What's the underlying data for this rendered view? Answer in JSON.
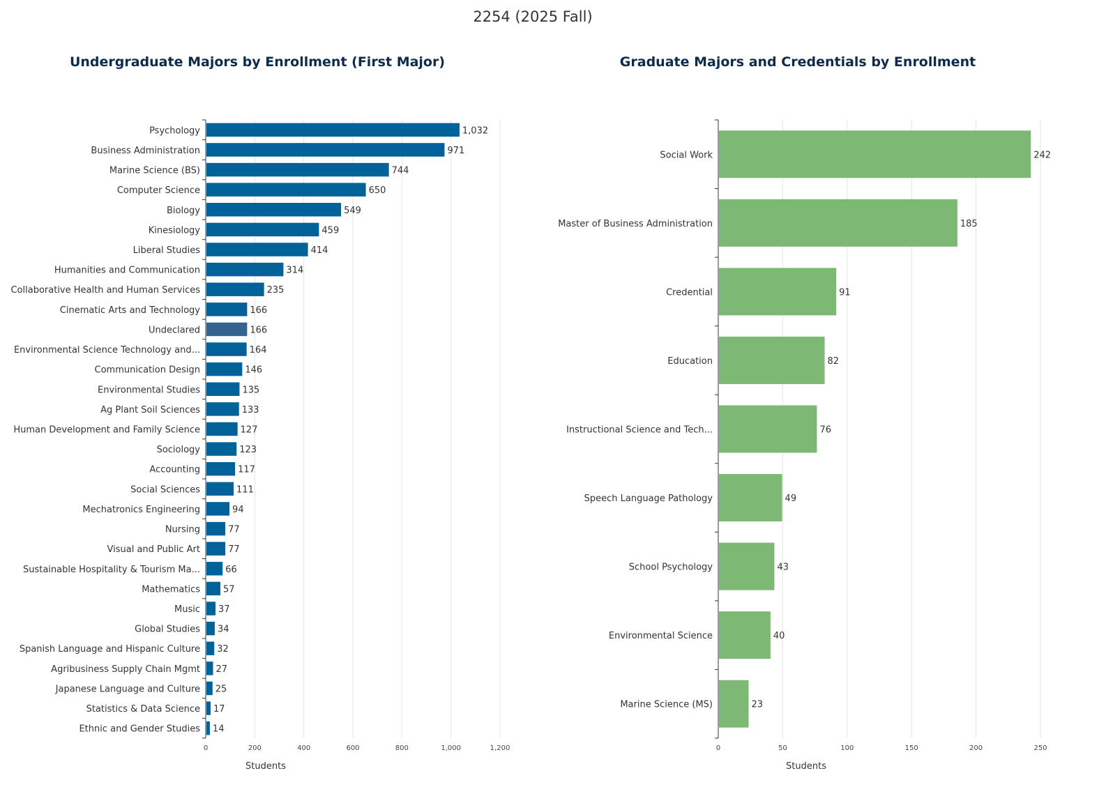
{
  "page_title": "2254 (2025 Fall)",
  "chart_data": [
    {
      "type": "bar",
      "orientation": "horizontal",
      "title": "Undergraduate Majors by Enrollment (First Major)",
      "xlabel": "Students",
      "xlim": [
        0,
        1200
      ],
      "xticks": [
        "0",
        "200",
        "400",
        "600",
        "800",
        "1,000",
        "1,200"
      ],
      "xtick_values": [
        0,
        200,
        400,
        600,
        800,
        1000,
        1200
      ],
      "grid": true,
      "color": "#006298",
      "highlight_color": "#35638f",
      "highlight_category": "Undeclared",
      "categories": [
        "Psychology",
        "Business Administration",
        "Marine Science (BS)",
        "Computer Science",
        "Biology",
        "Kinesiology",
        "Liberal Studies",
        "Humanities and Communication",
        "Collaborative Health and Human Services",
        "Cinematic Arts and Technology",
        "Undeclared",
        "Environmental Science Technology and...",
        "Communication Design",
        "Environmental Studies",
        "Ag Plant Soil Sciences",
        "Human Development and Family Science",
        "Sociology",
        "Accounting",
        "Social Sciences",
        "Mechatronics Engineering",
        "Nursing",
        "Visual and Public Art",
        "Sustainable Hospitality & Tourism Ma...",
        "Mathematics",
        "Music",
        "Global Studies",
        "Spanish Language and Hispanic Culture",
        "Agribusiness Supply Chain Mgmt",
        "Japanese Language and Culture",
        "Statistics & Data Science",
        "Ethnic and Gender Studies"
      ],
      "values": [
        1032,
        971,
        744,
        650,
        549,
        459,
        414,
        314,
        235,
        166,
        166,
        164,
        146,
        135,
        133,
        127,
        123,
        117,
        111,
        94,
        77,
        77,
        66,
        57,
        37,
        34,
        32,
        27,
        25,
        17,
        14
      ],
      "labels": [
        "1,032",
        "971",
        "744",
        "650",
        "549",
        "459",
        "414",
        "314",
        "235",
        "166",
        "166",
        "164",
        "146",
        "135",
        "133",
        "127",
        "123",
        "117",
        "111",
        "94",
        "77",
        "77",
        "66",
        "57",
        "37",
        "34",
        "32",
        "27",
        "25",
        "17",
        "14"
      ]
    },
    {
      "type": "bar",
      "orientation": "horizontal",
      "title": "Graduate Majors and Credentials by Enrollment",
      "xlabel": "Students",
      "xlim": [
        0,
        250
      ],
      "xticks": [
        "0",
        "50",
        "100",
        "150",
        "200",
        "250"
      ],
      "xtick_values": [
        0,
        50,
        100,
        150,
        200,
        250
      ],
      "grid": true,
      "color": "#7db874",
      "categories": [
        "Social Work",
        "Master of Business Administration",
        "Credential",
        "Education",
        "Instructional Science and Tech...",
        "Speech Language Pathology",
        "School Psychology",
        "Environmental Science",
        "Marine Science (MS)"
      ],
      "values": [
        242,
        185,
        91,
        82,
        76,
        49,
        43,
        40,
        23
      ],
      "labels": [
        "242",
        "185",
        "91",
        "82",
        "76",
        "49",
        "43",
        "40",
        "23"
      ]
    }
  ]
}
